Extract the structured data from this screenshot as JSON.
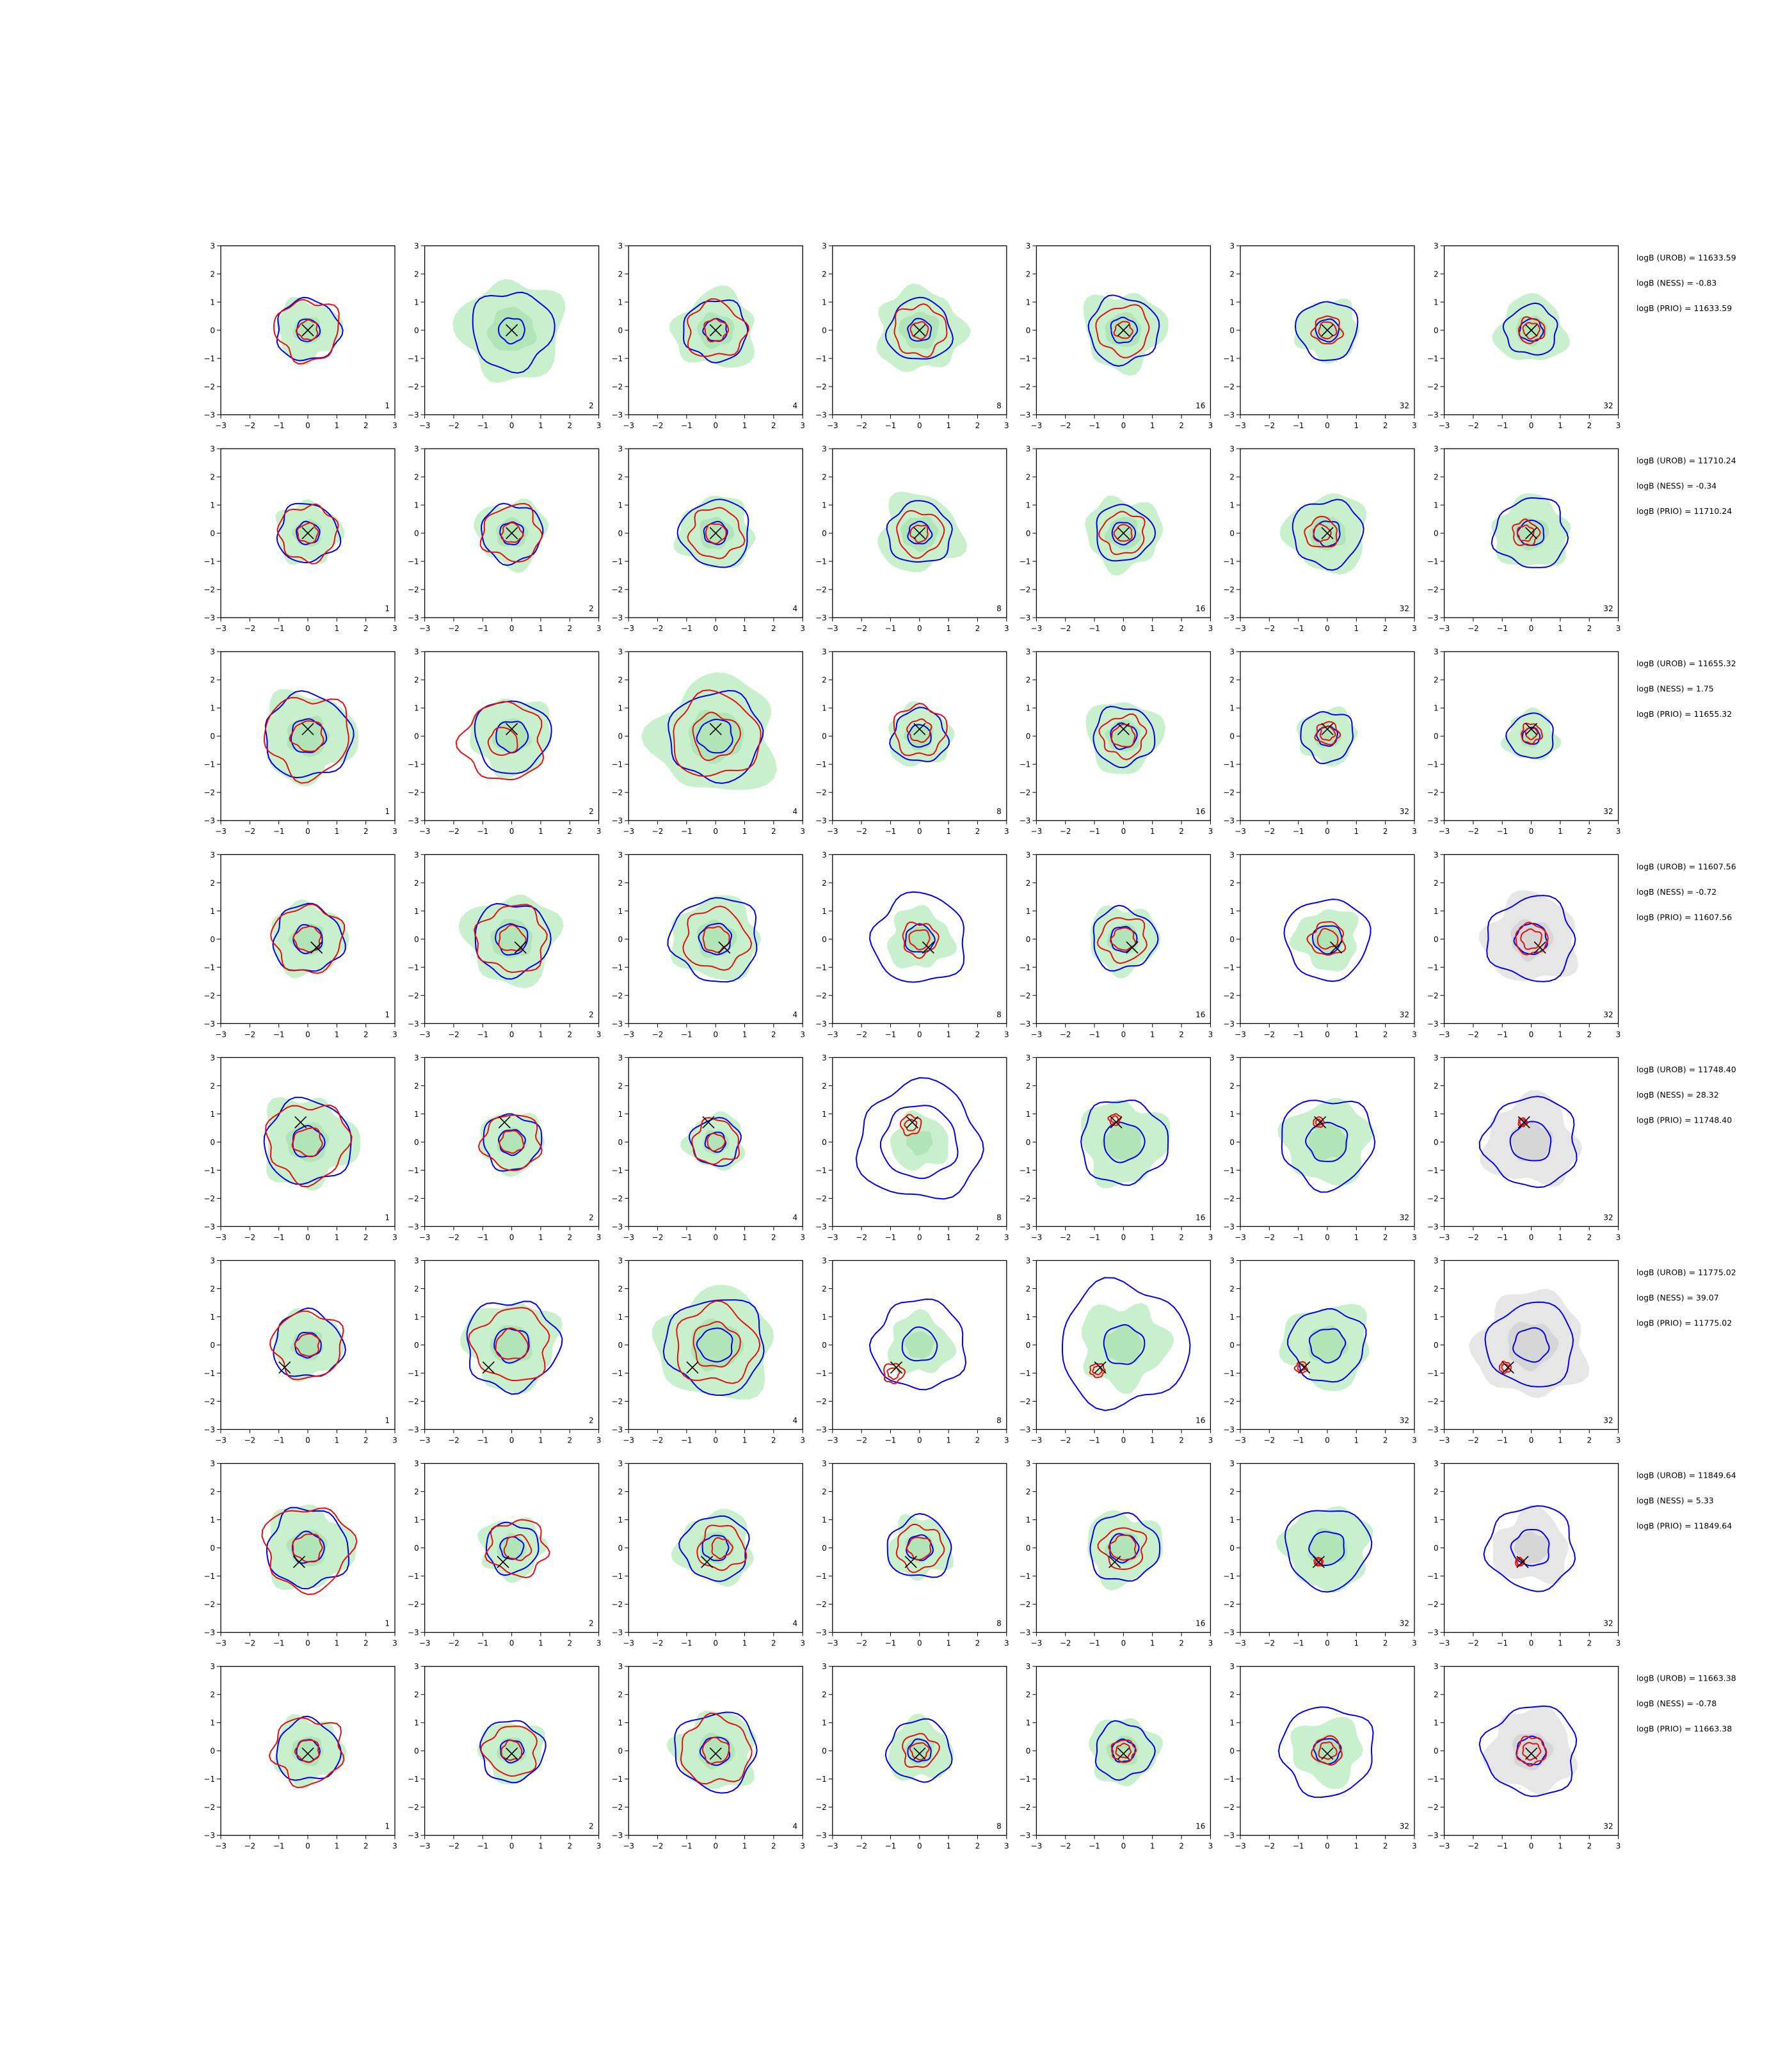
{
  "chart_data": {
    "type": "contour-grid",
    "rows": 8,
    "cols": 7,
    "xlim": [
      -3,
      3
    ],
    "ylim": [
      -3,
      3
    ],
    "ticks": [
      -3,
      -2,
      -1,
      0,
      1,
      2,
      3
    ],
    "colors": {
      "fill_green": "#c9f0cc",
      "fill_green_inner": "#a6dfae",
      "fill_grey": "#e6e6e6",
      "fill_grey_inner": "#cfcfcf",
      "contour_blue": "#0000ee",
      "contour_red": "#e31010",
      "marker": "#000000"
    },
    "panel_labels": [
      "1",
      "2",
      "4",
      "8",
      "16",
      "32",
      "32"
    ],
    "grey_fill_in_last_column_rows": [
      3,
      4,
      5,
      6,
      7
    ],
    "rows_data": [
      {
        "logB_UROB": "logB (UROB) = 11633.59",
        "logB_NESS": "logB (NESS) = -0.83",
        "logB_PRIO": "logB (PRIO) = 11633.59",
        "marker": [
          0.0,
          0.0
        ],
        "panels": [
          {
            "fill": 1.1,
            "blue": [
              1.1,
              0.4
            ],
            "red": [
              1.1,
              0.35
            ],
            "red_offset": [
              0,
              0
            ]
          },
          {
            "fill": 1.8,
            "blue": [
              1.4,
              0.45
            ],
            "red": [],
            "red_offset": [
              0,
              0
            ]
          },
          {
            "fill": 1.4,
            "blue": [
              1.1,
              0.4
            ],
            "red": [
              1.0,
              0.4
            ],
            "red_offset": [
              0,
              0
            ]
          },
          {
            "fill": 1.5,
            "blue": [
              1.1,
              0.4
            ],
            "red": [
              0.9,
              0.3
            ],
            "red_offset": [
              0,
              0
            ]
          },
          {
            "fill": 1.4,
            "blue": [
              1.2,
              0.45
            ],
            "red": [
              0.9,
              0.3
            ],
            "red_offset": [
              0,
              0
            ]
          },
          {
            "fill": 1.1,
            "blue": [
              1.05,
              0.4
            ],
            "red": [
              0.5,
              0.3
            ],
            "red_offset": [
              0,
              0
            ]
          },
          {
            "fill": 1.2,
            "blue": [
              0.9,
              0.4
            ],
            "red": [
              0.45,
              0.28
            ],
            "red_offset": [
              0,
              0
            ]
          }
        ]
      },
      {
        "logB_UROB": "logB (UROB) = 11710.24",
        "logB_NESS": "logB (NESS) = -0.34",
        "logB_PRIO": "logB (PRIO) = 11710.24",
        "marker": [
          0.0,
          0.0
        ],
        "panels": [
          {
            "fill": 1.1,
            "blue": [
              1.05,
              0.4
            ],
            "red": [
              1.0,
              0.35
            ],
            "red_offset": [
              0,
              0
            ]
          },
          {
            "fill": 1.2,
            "blue": [
              1.05,
              0.4
            ],
            "red": [
              1.0,
              0.35
            ],
            "red_offset": [
              0,
              0
            ]
          },
          {
            "fill": 1.3,
            "blue": [
              1.2,
              0.4
            ],
            "red": [
              0.9,
              0.35
            ],
            "red_offset": [
              0,
              0
            ]
          },
          {
            "fill": 1.4,
            "blue": [
              1.1,
              0.4
            ],
            "red": [
              0.8,
              0.3
            ],
            "red_offset": [
              0,
              0
            ]
          },
          {
            "fill": 1.3,
            "blue": [
              1.0,
              0.4
            ],
            "red": [
              0.75,
              0.3
            ],
            "red_offset": [
              0,
              0
            ]
          },
          {
            "fill": 1.4,
            "blue": [
              1.2,
              0.45
            ],
            "red": [
              0.55,
              0.3
            ],
            "red_offset": [
              -0.2,
              0
            ]
          },
          {
            "fill": 1.3,
            "blue": [
              1.25,
              0.45
            ],
            "red": [
              0.45,
              0.28
            ],
            "red_offset": [
              -0.2,
              0
            ]
          }
        ]
      },
      {
        "logB_UROB": "logB (UROB) = 11655.32",
        "logB_NESS": "logB (NESS) = 1.75",
        "logB_PRIO": "logB (PRIO) = 11655.32",
        "marker": [
          0.0,
          0.25
        ],
        "panels": [
          {
            "fill": 1.6,
            "blue": [
              1.5,
              0.6
            ],
            "red": [
              1.45,
              0.55
            ],
            "red_offset": [
              0,
              0
            ]
          },
          {
            "fill": 1.4,
            "blue": [
              1.3,
              0.55
            ],
            "red": [
              1.4,
              0.5
            ],
            "red_offset": [
              -0.3,
              -0.2
            ]
          },
          {
            "fill": 2.1,
            "blue": [
              1.6,
              0.6
            ],
            "red": [
              1.5,
              0.8
            ],
            "red_offset": [
              0,
              0
            ]
          },
          {
            "fill": 1.1,
            "blue": [
              0.95,
              0.4
            ],
            "red": [
              0.9,
              0.4
            ],
            "red_offset": [
              0,
              0.2
            ]
          },
          {
            "fill": 1.3,
            "blue": [
              1.05,
              0.45
            ],
            "red": [
              0.75,
              0.4
            ],
            "red_offset": [
              0,
              0
            ]
          },
          {
            "fill": 1.0,
            "blue": [
              0.9,
              0.35
            ],
            "red": [
              0.4,
              0.25
            ],
            "red_offset": [
              0,
              0.1
            ]
          },
          {
            "fill": 0.9,
            "blue": [
              0.8,
              0.3
            ],
            "red": [
              0.35,
              0.2
            ],
            "red_offset": [
              0,
              0.1
            ]
          }
        ]
      },
      {
        "logB_UROB": "logB (UROB) = 11607.56",
        "logB_NESS": "logB (NESS) = -0.72",
        "logB_PRIO": "logB (PRIO) = 11607.56",
        "marker": [
          0.3,
          -0.3
        ],
        "panels": [
          {
            "fill": 1.3,
            "blue": [
              1.2,
              0.5
            ],
            "red": [
              1.2,
              0.45
            ],
            "red_offset": [
              0,
              0
            ]
          },
          {
            "fill": 1.6,
            "blue": [
              1.3,
              0.55
            ],
            "red": [
              1.2,
              0.45
            ],
            "red_offset": [
              0,
              0
            ]
          },
          {
            "fill": 1.5,
            "blue": [
              1.5,
              0.55
            ],
            "red": [
              1.1,
              0.45
            ],
            "red_offset": [
              0,
              0
            ]
          },
          {
            "fill": 1.1,
            "blue": [
              1.6,
              0.5
            ],
            "red": [
              0.6,
              0.35
            ],
            "red_offset": [
              0,
              0
            ]
          },
          {
            "fill": 1.2,
            "blue": [
              1.1,
              0.45
            ],
            "red": [
              0.8,
              0.4
            ],
            "red_offset": [
              0,
              0
            ]
          },
          {
            "fill": 1.1,
            "blue": [
              1.45,
              0.5
            ],
            "red": [
              0.6,
              0.35
            ],
            "red_offset": [
              0,
              0
            ]
          },
          {
            "fill": 1.6,
            "blue": [
              1.5,
              0.55
            ],
            "red": [
              0.55,
              0.35
            ],
            "red_offset": [
              0,
              0
            ]
          }
        ]
      },
      {
        "logB_UROB": "logB (UROB) = 11748.40",
        "logB_NESS": "logB (NESS) = 28.32",
        "logB_PRIO": "logB (PRIO) = 11748.40",
        "marker": [
          -0.25,
          0.7
        ],
        "panels": [
          {
            "fill": 1.6,
            "blue": [
              1.5,
              0.55
            ],
            "red": [
              1.4,
              0.5
            ],
            "red_offset": [
              0,
              0
            ]
          },
          {
            "fill": 1.1,
            "blue": [
              1.0,
              0.45
            ],
            "red": [
              1.0,
              0.4
            ],
            "red_offset": [
              0,
              0
            ]
          },
          {
            "fill": 1.0,
            "blue": [
              0.85,
              0.35
            ],
            "red": [
              0.8,
              0.3
            ],
            "red_offset": [
              0,
              0
            ]
          },
          {
            "fill": 1.0,
            "blue": [
              2.1,
              1.3
            ],
            "red": [
              0.35,
              0.2
            ],
            "red_offset": [
              -0.3,
              0.6
            ]
          },
          {
            "fill": 1.5,
            "blue": [
              1.5,
              0.7
            ],
            "red": [
              0.2,
              0.12
            ],
            "red_offset": [
              -0.3,
              0.8
            ]
          },
          {
            "fill": 1.5,
            "blue": [
              1.6,
              0.7
            ],
            "red": [
              0.18,
              0.1
            ],
            "red_offset": [
              -0.3,
              0.7
            ]
          },
          {
            "fill": 1.6,
            "blue": [
              1.6,
              0.7
            ],
            "red": [
              0.15,
              0.1
            ],
            "red_offset": [
              -0.3,
              0.7
            ]
          }
        ]
      },
      {
        "logB_UROB": "logB (UROB) = 11775.02",
        "logB_NESS": "logB (NESS) = 39.07",
        "logB_PRIO": "logB (PRIO) = 11775.02",
        "marker": [
          -0.8,
          -0.8
        ],
        "panels": [
          {
            "fill": 1.2,
            "blue": [
              1.2,
              0.45
            ],
            "red": [
              1.2,
              0.4
            ],
            "red_offset": [
              0,
              0
            ]
          },
          {
            "fill": 1.6,
            "blue": [
              1.6,
              0.6
            ],
            "red": [
              1.3,
              0.55
            ],
            "red_offset": [
              0,
              0
            ]
          },
          {
            "fill": 2.0,
            "blue": [
              1.7,
              0.6
            ],
            "red": [
              1.4,
              0.8
            ],
            "red_offset": [
              0,
              0
            ]
          },
          {
            "fill": 1.1,
            "blue": [
              1.6,
              0.6
            ],
            "red": [
              0.35,
              0.2
            ],
            "red_offset": [
              -0.9,
              -1.0
            ]
          },
          {
            "fill": 1.5,
            "blue": [
              2.2,
              0.7
            ],
            "red": [
              0.25,
              0.15
            ],
            "red_offset": [
              -0.9,
              -0.9
            ]
          },
          {
            "fill": 1.5,
            "blue": [
              1.3,
              0.6
            ],
            "red": [
              0.2,
              0.12
            ],
            "red_offset": [
              -0.9,
              -0.8
            ]
          },
          {
            "fill": 1.9,
            "blue": [
              1.5,
              0.6
            ],
            "red": [
              0.2,
              0.12
            ],
            "red_offset": [
              -0.9,
              -0.8
            ]
          }
        ]
      },
      {
        "logB_UROB": "logB (UROB) = 11849.64",
        "logB_NESS": "logB (NESS) = 5.33",
        "logB_PRIO": "logB (PRIO) = 11849.64",
        "marker": [
          -0.3,
          -0.5
        ],
        "panels": [
          {
            "fill": 1.5,
            "blue": [
              1.4,
              0.55
            ],
            "red": [
              1.5,
              0.5
            ],
            "red_offset": [
              0,
              0
            ]
          },
          {
            "fill": 1.1,
            "blue": [
              0.9,
              0.4
            ],
            "red": [
              1.0,
              0.45
            ],
            "red_offset": [
              0.2,
              0
            ]
          },
          {
            "fill": 1.3,
            "blue": [
              1.15,
              0.45
            ],
            "red": [
              0.8,
              0.35
            ],
            "red_offset": [
              0.2,
              0
            ]
          },
          {
            "fill": 1.1,
            "blue": [
              1.1,
              0.45
            ],
            "red": [
              0.8,
              0.4
            ],
            "red_offset": [
              0,
              0
            ]
          },
          {
            "fill": 1.3,
            "blue": [
              1.2,
              0.5
            ],
            "red": [
              0.75,
              0.45
            ],
            "red_offset": [
              0,
              0
            ]
          },
          {
            "fill": 1.5,
            "blue": [
              1.45,
              0.6
            ],
            "red": [
              0.15,
              0.1
            ],
            "red_offset": [
              -0.3,
              -0.5
            ]
          },
          {
            "fill": 1.3,
            "blue": [
              1.5,
              0.65
            ],
            "red": [
              0.15,
              0.1
            ],
            "red_offset": [
              -0.4,
              -0.5
            ]
          }
        ]
      },
      {
        "logB_UROB": "logB (UROB) = 11663.38",
        "logB_NESS": "logB (NESS) = -0.78",
        "logB_PRIO": "logB (PRIO) = 11663.38",
        "marker": [
          0.0,
          -0.1
        ],
        "panels": [
          {
            "fill": 1.2,
            "blue": [
              1.1,
              0.4
            ],
            "red": [
              1.2,
              0.4
            ],
            "red_offset": [
              0,
              0
            ]
          },
          {
            "fill": 1.1,
            "blue": [
              1.1,
              0.4
            ],
            "red": [
              0.9,
              0.35
            ],
            "red_offset": [
              0,
              0
            ]
          },
          {
            "fill": 1.4,
            "blue": [
              1.4,
              0.5
            ],
            "red": [
              1.2,
              0.45
            ],
            "red_offset": [
              0,
              0
            ]
          },
          {
            "fill": 1.1,
            "blue": [
              1.1,
              0.4
            ],
            "red": [
              0.6,
              0.3
            ],
            "red_offset": [
              0,
              0
            ]
          },
          {
            "fill": 1.2,
            "blue": [
              1.0,
              0.4
            ],
            "red": [
              0.4,
              0.25
            ],
            "red_offset": [
              0,
              0
            ]
          },
          {
            "fill": 1.2,
            "blue": [
              1.6,
              0.45
            ],
            "red": [
              0.5,
              0.3
            ],
            "red_offset": [
              0,
              0
            ]
          },
          {
            "fill": 1.5,
            "blue": [
              1.6,
              0.5
            ],
            "red": [
              0.5,
              0.3
            ],
            "red_offset": [
              0,
              0
            ]
          }
        ]
      }
    ]
  }
}
